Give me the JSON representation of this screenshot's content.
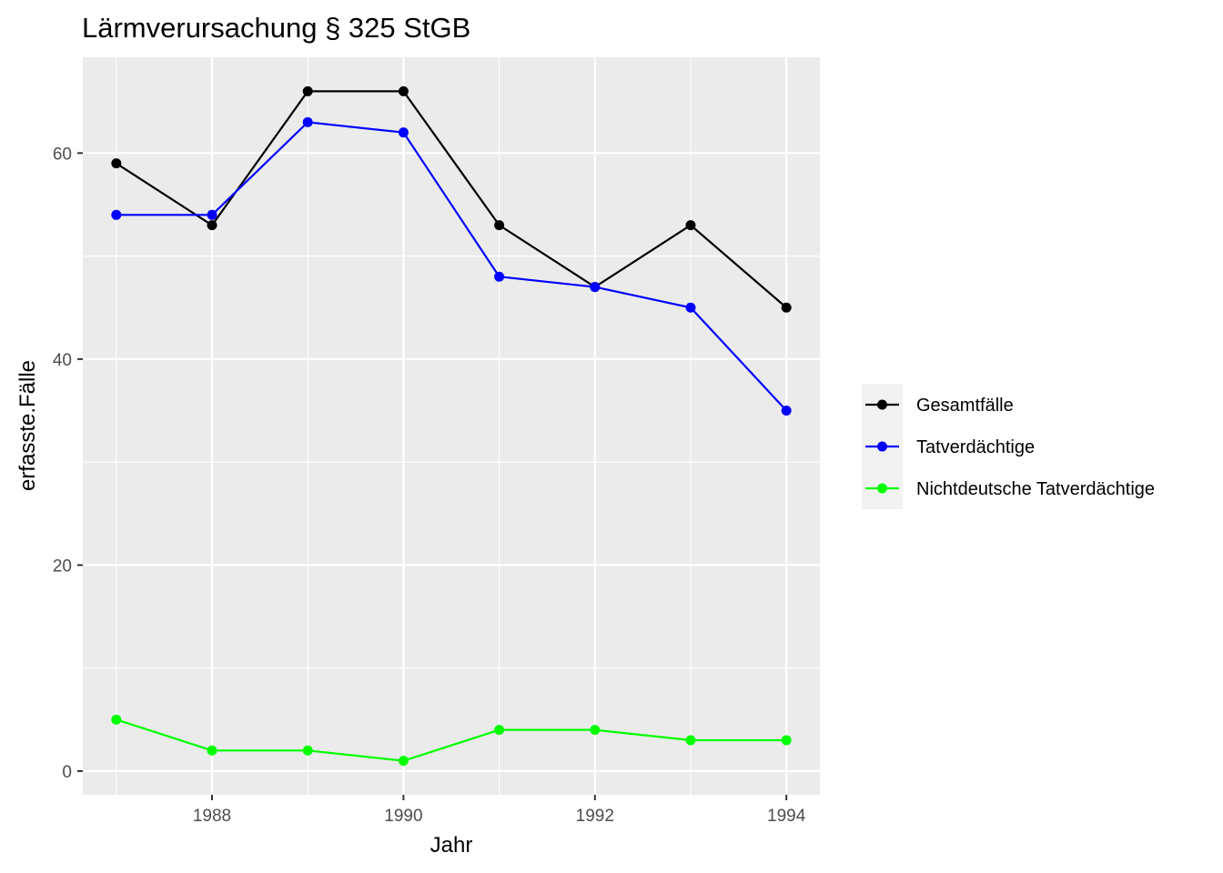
{
  "chart_data": {
    "type": "line",
    "title": "Lärmverursachung § 325 StGB",
    "xlabel": "Jahr",
    "ylabel": "erfasste.Fälle",
    "x": [
      1987,
      1988,
      1989,
      1990,
      1991,
      1992,
      1993,
      1994
    ],
    "xticks": [
      1988,
      1990,
      1992,
      1994
    ],
    "yticks": [
      0,
      20,
      40,
      60
    ],
    "xlim": [
      1986.65,
      1994.35
    ],
    "ylim": [
      -2.3,
      69.3
    ],
    "grid": true,
    "legend_position": "right",
    "series": [
      {
        "name": "Gesamtfälle",
        "color": "#000000",
        "values": [
          59,
          53,
          66,
          66,
          53,
          47,
          53,
          45
        ]
      },
      {
        "name": "Tatverdächtige",
        "color": "#0000ff",
        "values": [
          54,
          54,
          63,
          62,
          48,
          47,
          45,
          35
        ]
      },
      {
        "name": "Nichtdeutsche Tatverdächtige",
        "color": "#00ff00",
        "values": [
          5,
          2,
          2,
          1,
          4,
          4,
          3,
          3
        ]
      }
    ],
    "panel_background": "#ebebeb",
    "grid_color": "#ffffff"
  }
}
